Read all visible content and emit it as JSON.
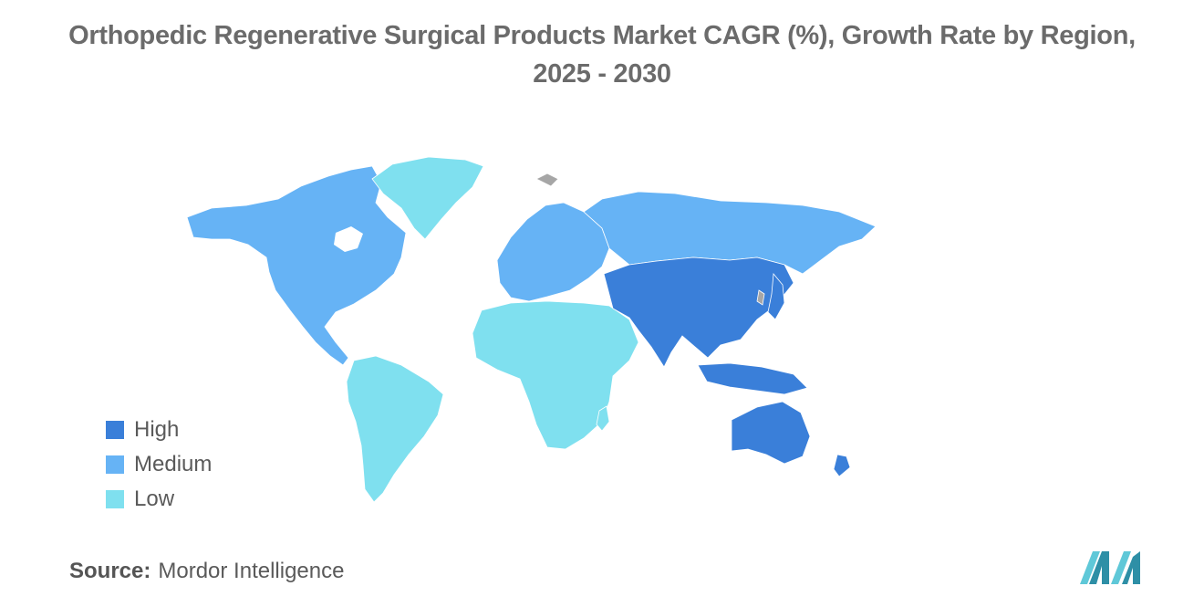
{
  "title": {
    "line1": "Orthopedic Regenerative Surgical Products Market CAGR (%), Growth Rate by Region,",
    "line2": "2025 - 2030"
  },
  "legend": [
    {
      "label": "High",
      "color": "#3a7fd9"
    },
    {
      "label": "Medium",
      "color": "#66b3f5"
    },
    {
      "label": "Low",
      "color": "#7fe0ef"
    }
  ],
  "regions": [
    {
      "name": "North America",
      "level": "Medium"
    },
    {
      "name": "Europe",
      "level": "Medium"
    },
    {
      "name": "Asia-Pacific",
      "level": "High"
    },
    {
      "name": "South America",
      "level": "Low"
    },
    {
      "name": "Middle East and Africa",
      "level": "Low"
    }
  ],
  "source": {
    "label": "Source:",
    "value": "Mordor Intelligence"
  },
  "colors": {
    "high": "#3a7fd9",
    "medium": "#66b3f5",
    "low": "#7fe0ef",
    "no_data": "#a6a6a6",
    "logo_dark": "#2e8fa6",
    "logo_light": "#5fc8d8"
  }
}
